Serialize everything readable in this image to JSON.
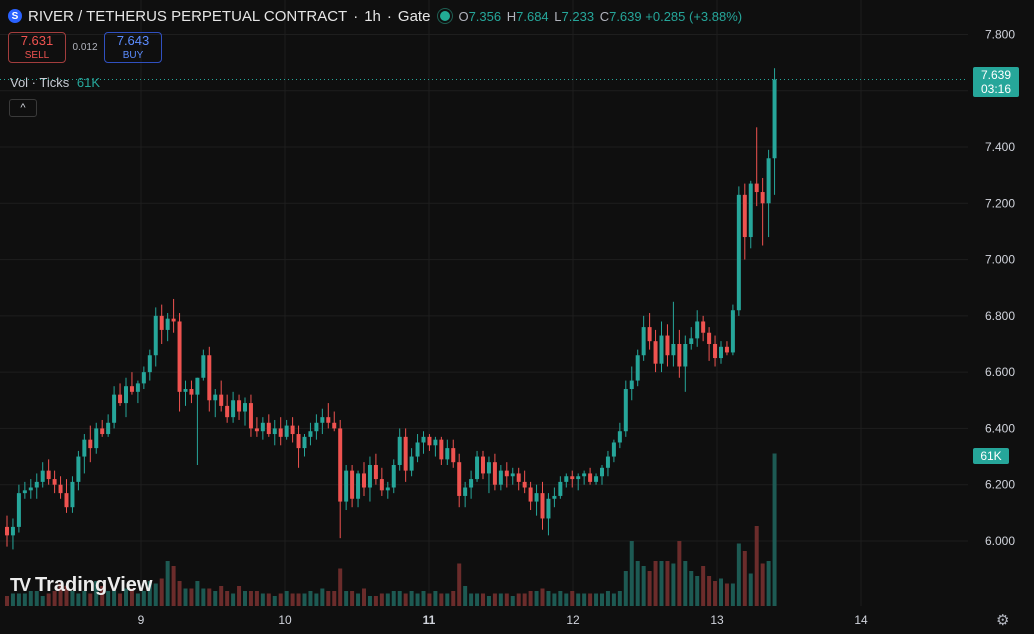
{
  "header": {
    "logo": "S",
    "symbol": "RIVER / TETHERUS PERPETUAL CONTRACT",
    "interval": "1h",
    "exchange": "Gate",
    "sep": "·",
    "ohlc": {
      "o_label": "O",
      "o": "7.356",
      "h_label": "H",
      "h": "7.684",
      "l_label": "L",
      "l": "7.233",
      "c_label": "C",
      "c": "7.639",
      "change": "+0.285 (+3.88%)"
    }
  },
  "trade": {
    "sell_price": "7.631",
    "sell_label": "SELL",
    "spread": "0.012",
    "buy_price": "7.643",
    "buy_label": "BUY"
  },
  "volume_legend": {
    "label": "Vol · Ticks",
    "value": "61K"
  },
  "collapse_icon": "^",
  "price_scale": {
    "labels": [
      "7.800",
      "7.600",
      "7.400",
      "7.200",
      "7.000",
      "6.800",
      "6.600",
      "6.400",
      "6.200",
      "6.000"
    ]
  },
  "last_price": {
    "price": "7.639",
    "countdown": "03:16"
  },
  "volume_label": "61K",
  "time_axis": {
    "labels": [
      "9",
      "10",
      "11",
      "12",
      "13",
      "14"
    ]
  },
  "watermark": "TradingView",
  "settings_icon": "⚙",
  "colors": {
    "up": "#26a69a",
    "down": "#ef5350",
    "background": "#0f0f0f",
    "grid": "#1e1e1e"
  },
  "chart_data": {
    "type": "candlestick",
    "interval": "1h",
    "ylim": [
      5.84,
      7.83
    ],
    "candles": [
      [
        6.05,
        6.09,
        5.98,
        6.02
      ],
      [
        6.02,
        6.08,
        5.97,
        6.05
      ],
      [
        6.05,
        6.2,
        6.03,
        6.17
      ],
      [
        6.17,
        6.21,
        6.15,
        6.18
      ],
      [
        6.18,
        6.22,
        6.15,
        6.19
      ],
      [
        6.19,
        6.24,
        6.15,
        6.21
      ],
      [
        6.21,
        6.28,
        6.19,
        6.25
      ],
      [
        6.25,
        6.29,
        6.2,
        6.22
      ],
      [
        6.22,
        6.25,
        6.17,
        6.2
      ],
      [
        6.2,
        6.23,
        6.15,
        6.17
      ],
      [
        6.17,
        6.22,
        6.1,
        6.12
      ],
      [
        6.12,
        6.23,
        6.1,
        6.21
      ],
      [
        6.21,
        6.32,
        6.18,
        6.3
      ],
      [
        6.3,
        6.38,
        6.24,
        6.36
      ],
      [
        6.36,
        6.41,
        6.28,
        6.33
      ],
      [
        6.33,
        6.42,
        6.31,
        6.4
      ],
      [
        6.4,
        6.43,
        6.37,
        6.38
      ],
      [
        6.38,
        6.45,
        6.37,
        6.42
      ],
      [
        6.42,
        6.55,
        6.4,
        6.52
      ],
      [
        6.52,
        6.56,
        6.48,
        6.49
      ],
      [
        6.49,
        6.58,
        6.44,
        6.55
      ],
      [
        6.55,
        6.6,
        6.52,
        6.53
      ],
      [
        6.53,
        6.57,
        6.49,
        6.56
      ],
      [
        6.56,
        6.62,
        6.54,
        6.6
      ],
      [
        6.6,
        6.68,
        6.57,
        6.66
      ],
      [
        6.66,
        6.83,
        6.62,
        6.8
      ],
      [
        6.8,
        6.84,
        6.7,
        6.75
      ],
      [
        6.75,
        6.81,
        6.71,
        6.79
      ],
      [
        6.79,
        6.86,
        6.74,
        6.78
      ],
      [
        6.78,
        6.81,
        6.46,
        6.53
      ],
      [
        6.53,
        6.57,
        6.48,
        6.54
      ],
      [
        6.54,
        6.57,
        6.49,
        6.52
      ],
      [
        6.52,
        6.58,
        6.27,
        6.58
      ],
      [
        6.58,
        6.68,
        6.57,
        6.66
      ],
      [
        6.66,
        6.69,
        6.46,
        6.5
      ],
      [
        6.5,
        6.54,
        6.44,
        6.52
      ],
      [
        6.52,
        6.57,
        6.46,
        6.48
      ],
      [
        6.48,
        6.52,
        6.42,
        6.44
      ],
      [
        6.44,
        6.53,
        6.42,
        6.5
      ],
      [
        6.5,
        6.52,
        6.43,
        6.46
      ],
      [
        6.46,
        6.51,
        6.41,
        6.49
      ],
      [
        6.49,
        6.52,
        6.37,
        6.4
      ],
      [
        6.4,
        6.44,
        6.37,
        6.39
      ],
      [
        6.39,
        6.44,
        6.36,
        6.42
      ],
      [
        6.42,
        6.45,
        6.37,
        6.38
      ],
      [
        6.38,
        6.43,
        6.34,
        6.4
      ],
      [
        6.4,
        6.44,
        6.34,
        6.37
      ],
      [
        6.37,
        6.43,
        6.36,
        6.41
      ],
      [
        6.41,
        6.44,
        6.35,
        6.38
      ],
      [
        6.38,
        6.41,
        6.26,
        6.33
      ],
      [
        6.33,
        6.38,
        6.3,
        6.37
      ],
      [
        6.37,
        6.42,
        6.34,
        6.39
      ],
      [
        6.39,
        6.45,
        6.36,
        6.42
      ],
      [
        6.42,
        6.47,
        6.38,
        6.44
      ],
      [
        6.44,
        6.49,
        6.4,
        6.42
      ],
      [
        6.42,
        6.46,
        6.39,
        6.4
      ],
      [
        6.4,
        6.43,
        6.01,
        6.14
      ],
      [
        6.14,
        6.27,
        6.11,
        6.25
      ],
      [
        6.25,
        6.27,
        6.12,
        6.15
      ],
      [
        6.15,
        6.25,
        6.12,
        6.24
      ],
      [
        6.24,
        6.28,
        6.16,
        6.19
      ],
      [
        6.19,
        6.3,
        6.14,
        6.27
      ],
      [
        6.27,
        6.31,
        6.2,
        6.22
      ],
      [
        6.22,
        6.26,
        6.16,
        6.18
      ],
      [
        6.18,
        6.21,
        6.15,
        6.19
      ],
      [
        6.19,
        6.29,
        6.17,
        6.27
      ],
      [
        6.27,
        6.4,
        6.25,
        6.37
      ],
      [
        6.37,
        6.4,
        6.21,
        6.25
      ],
      [
        6.25,
        6.33,
        6.23,
        6.3
      ],
      [
        6.3,
        6.38,
        6.28,
        6.35
      ],
      [
        6.35,
        6.39,
        6.31,
        6.37
      ],
      [
        6.37,
        6.38,
        6.32,
        6.34
      ],
      [
        6.34,
        6.37,
        6.3,
        6.36
      ],
      [
        6.36,
        6.37,
        6.27,
        6.29
      ],
      [
        6.29,
        6.36,
        6.27,
        6.33
      ],
      [
        6.33,
        6.36,
        6.26,
        6.28
      ],
      [
        6.28,
        6.31,
        6.12,
        6.16
      ],
      [
        6.16,
        6.21,
        6.12,
        6.19
      ],
      [
        6.19,
        6.25,
        6.15,
        6.22
      ],
      [
        6.22,
        6.32,
        6.21,
        6.3
      ],
      [
        6.3,
        6.32,
        6.22,
        6.24
      ],
      [
        6.24,
        6.3,
        6.17,
        6.28
      ],
      [
        6.28,
        6.31,
        6.18,
        6.2
      ],
      [
        6.2,
        6.27,
        6.18,
        6.25
      ],
      [
        6.25,
        6.28,
        6.19,
        6.23
      ],
      [
        6.23,
        6.26,
        6.2,
        6.24
      ],
      [
        6.24,
        6.26,
        6.18,
        6.21
      ],
      [
        6.21,
        6.25,
        6.17,
        6.19
      ],
      [
        6.19,
        6.21,
        6.11,
        6.14
      ],
      [
        6.14,
        6.2,
        6.09,
        6.17
      ],
      [
        6.17,
        6.21,
        6.04,
        6.08
      ],
      [
        6.08,
        6.17,
        6.02,
        6.15
      ],
      [
        6.15,
        6.19,
        6.12,
        6.16
      ],
      [
        6.16,
        6.23,
        6.15,
        6.21
      ],
      [
        6.21,
        6.24,
        6.19,
        6.23
      ],
      [
        6.23,
        6.25,
        6.19,
        6.22
      ],
      [
        6.22,
        6.24,
        6.18,
        6.23
      ],
      [
        6.23,
        6.25,
        6.2,
        6.24
      ],
      [
        6.24,
        6.26,
        6.2,
        6.21
      ],
      [
        6.21,
        6.24,
        6.2,
        6.23
      ],
      [
        6.23,
        6.27,
        6.2,
        6.26
      ],
      [
        6.26,
        6.32,
        6.23,
        6.3
      ],
      [
        6.3,
        6.36,
        6.28,
        6.35
      ],
      [
        6.35,
        6.42,
        6.33,
        6.39
      ],
      [
        6.39,
        6.57,
        6.37,
        6.54
      ],
      [
        6.54,
        6.62,
        6.5,
        6.57
      ],
      [
        6.57,
        6.68,
        6.55,
        6.66
      ],
      [
        6.66,
        6.8,
        6.64,
        6.76
      ],
      [
        6.76,
        6.81,
        6.68,
        6.71
      ],
      [
        6.71,
        6.75,
        6.6,
        6.63
      ],
      [
        6.63,
        6.78,
        6.6,
        6.73
      ],
      [
        6.73,
        6.77,
        6.62,
        6.66
      ],
      [
        6.66,
        6.85,
        6.62,
        6.7
      ],
      [
        6.7,
        6.75,
        6.58,
        6.62
      ],
      [
        6.62,
        6.73,
        6.53,
        6.7
      ],
      [
        6.7,
        6.76,
        6.68,
        6.72
      ],
      [
        6.72,
        6.82,
        6.69,
        6.78
      ],
      [
        6.78,
        6.8,
        6.71,
        6.74
      ],
      [
        6.74,
        6.76,
        6.64,
        6.7
      ],
      [
        6.7,
        6.73,
        6.62,
        6.65
      ],
      [
        6.65,
        6.71,
        6.63,
        6.69
      ],
      [
        6.69,
        6.71,
        6.66,
        6.67
      ],
      [
        6.67,
        6.84,
        6.66,
        6.82
      ],
      [
        6.82,
        7.26,
        6.8,
        7.23
      ],
      [
        7.23,
        7.27,
        7.0,
        7.08
      ],
      [
        7.08,
        7.28,
        7.04,
        7.27
      ],
      [
        7.27,
        7.47,
        7.19,
        7.24
      ],
      [
        7.24,
        7.29,
        7.05,
        7.2
      ],
      [
        7.2,
        7.39,
        7.08,
        7.36
      ],
      [
        7.36,
        7.68,
        7.23,
        7.64
      ]
    ],
    "volume": [
      0.04,
      0.05,
      0.05,
      0.05,
      0.06,
      0.06,
      0.04,
      0.05,
      0.06,
      0.09,
      0.08,
      0.06,
      0.05,
      0.06,
      0.05,
      0.1,
      0.08,
      0.06,
      0.06,
      0.05,
      0.07,
      0.07,
      0.05,
      0.06,
      0.1,
      0.09,
      0.11,
      0.18,
      0.16,
      0.1,
      0.07,
      0.07,
      0.1,
      0.07,
      0.07,
      0.06,
      0.08,
      0.06,
      0.05,
      0.08,
      0.06,
      0.06,
      0.06,
      0.05,
      0.05,
      0.04,
      0.05,
      0.06,
      0.05,
      0.05,
      0.05,
      0.06,
      0.05,
      0.07,
      0.06,
      0.06,
      0.15,
      0.06,
      0.06,
      0.05,
      0.07,
      0.04,
      0.04,
      0.05,
      0.05,
      0.06,
      0.06,
      0.05,
      0.06,
      0.05,
      0.06,
      0.05,
      0.06,
      0.05,
      0.05,
      0.06,
      0.17,
      0.08,
      0.05,
      0.05,
      0.05,
      0.04,
      0.05,
      0.05,
      0.05,
      0.04,
      0.05,
      0.05,
      0.06,
      0.06,
      0.07,
      0.06,
      0.05,
      0.06,
      0.05,
      0.06,
      0.05,
      0.05,
      0.05,
      0.05,
      0.05,
      0.06,
      0.05,
      0.06,
      0.14,
      0.26,
      0.18,
      0.16,
      0.14,
      0.18,
      0.18,
      0.18,
      0.17,
      0.26,
      0.18,
      0.14,
      0.12,
      0.16,
      0.12,
      0.1,
      0.11,
      0.09,
      0.09,
      0.25,
      0.22,
      0.13,
      0.32,
      0.17,
      0.18,
      0.61
    ]
  }
}
